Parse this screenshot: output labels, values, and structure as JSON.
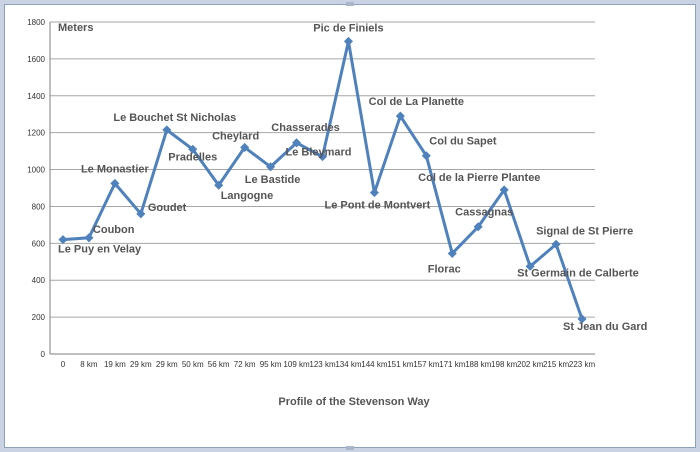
{
  "chart_data": {
    "type": "line",
    "title": "",
    "xlabel": "Profile of the Stevenson Way",
    "ylabel": "Meters",
    "ylim": [
      0,
      1800
    ],
    "ytick_step": 200,
    "grid": true,
    "legend": "none",
    "line_color": "#4f81bd",
    "categories": [
      "0",
      "8 km",
      "19 km",
      "29 km",
      "29 km",
      "50 km",
      "56 km",
      "72 km",
      "95 km",
      "109 km",
      "123 km",
      "134 km",
      "144 km",
      "151 km",
      "157 km",
      "171 km",
      "188 km",
      "198 km",
      "202 km",
      "215 km",
      "223 km"
    ],
    "values": [
      620,
      630,
      925,
      760,
      1215,
      1110,
      915,
      1120,
      1015,
      1145,
      1070,
      1695,
      875,
      1290,
      1075,
      545,
      690,
      890,
      475,
      595,
      190
    ],
    "point_labels": [
      "Le Puy en Velay",
      "Coubon",
      "Le Monastier",
      "Goudet",
      "Le Bouchet St Nicholas",
      "Pradelles",
      "Langogne",
      "Cheylard",
      "Le Bastide",
      "Chasserades",
      "Le Bleymard",
      "Pic de Finiels",
      "Le Pont de Montvert",
      "Col de La Planette",
      "Col du Sapet",
      "Florac",
      "Cassagnas",
      "Col de la Pierre Plantee",
      "St Germain de Calberte",
      "Signal de St Pierre",
      "St Jean du Gard"
    ]
  }
}
